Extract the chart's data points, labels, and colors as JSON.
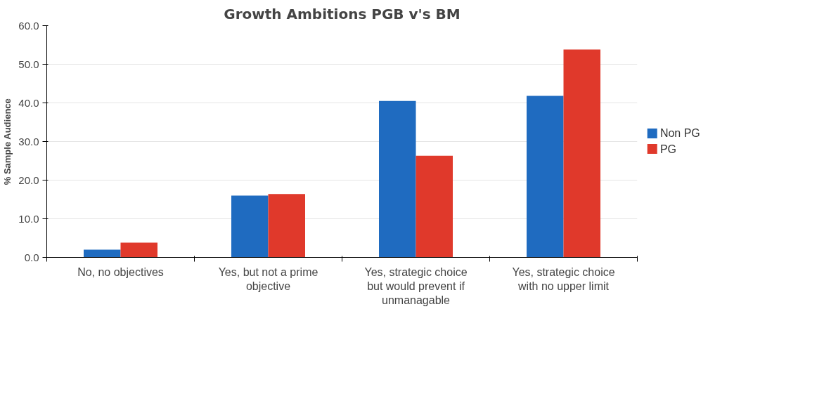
{
  "chart_data": {
    "type": "bar",
    "title": "Growth Ambitions PGB v's BM",
    "ylabel": "% Sample Audience",
    "categories": [
      "No, no objectives",
      "Yes, but not a prime objective",
      "Yes, strategic choice but would prevent if unmanagable",
      "Yes, strategic choice with no upper limit"
    ],
    "series": [
      {
        "name": "Non PG",
        "color": "#1f6bc0",
        "values": [
          2.0,
          16.0,
          40.5,
          41.8
        ]
      },
      {
        "name": "PG",
        "color": "#e0392b",
        "values": [
          3.8,
          16.4,
          26.3,
          53.8
        ]
      }
    ],
    "ylim": [
      0,
      60
    ],
    "yticks": [
      {
        "value": 0,
        "label": "0.0"
      },
      {
        "value": 10,
        "label": "10.0"
      },
      {
        "value": 20,
        "label": "20.0"
      },
      {
        "value": 30,
        "label": "30.0"
      },
      {
        "value": 40,
        "label": "40.0"
      },
      {
        "value": 50,
        "label": "50.0"
      },
      {
        "value": 60,
        "label": "60.0"
      }
    ],
    "grid": "y",
    "legend": "right"
  }
}
